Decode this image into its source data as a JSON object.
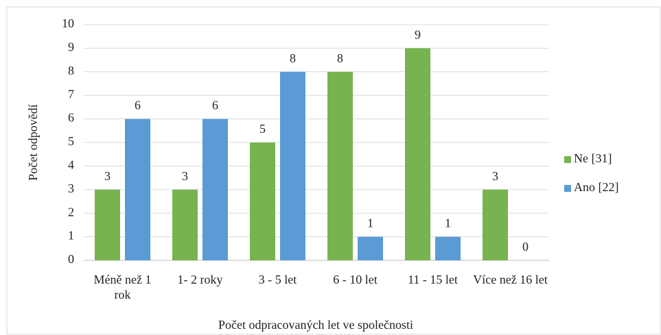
{
  "chart_data": {
    "type": "bar",
    "categories": [
      "Méně než 1 rok",
      "1- 2 roky",
      "3 - 5 let",
      "6 - 10 let",
      "11 - 15 let",
      "Více než 16 let"
    ],
    "series": [
      {
        "name": "Ne [31]",
        "color": "#77b34f",
        "values": [
          3,
          3,
          5,
          8,
          9,
          3
        ]
      },
      {
        "name": "Ano [22]",
        "color": "#5b9bd5",
        "values": [
          6,
          6,
          8,
          1,
          1,
          0
        ]
      }
    ],
    "x_label": "Počet odpracovaných let ve společnosti",
    "y_label": "Počet odpovědí",
    "ylim": [
      0,
      10
    ],
    "yticks": [
      0,
      1,
      2,
      3,
      4,
      5,
      6,
      7,
      8,
      9,
      10
    ],
    "grid": true,
    "legend": "right"
  }
}
